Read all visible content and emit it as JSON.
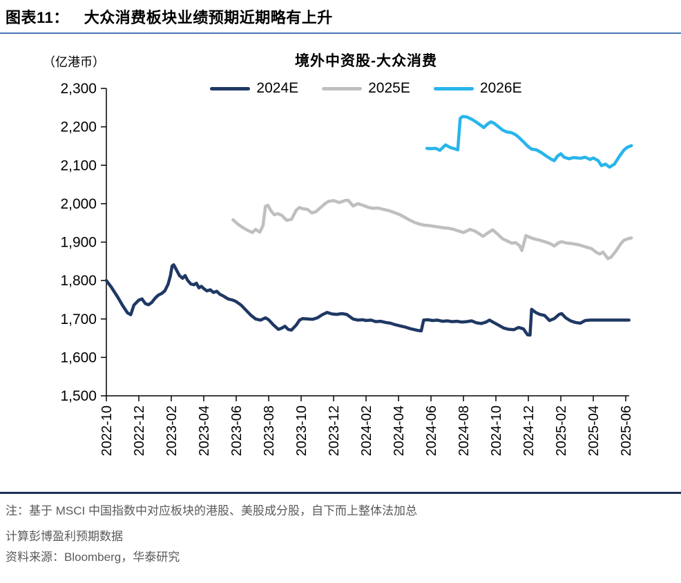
{
  "page": {
    "title_prefix": "图表11：",
    "title": "大众消费板块业绩预期近期略有上升",
    "note_line1": "注：基于 MSCI 中国指数中对应板块的港股、美股成分股，自下而上整体法加总",
    "note_line2": "计算彭博盈利预期数据",
    "source": "资料来源：Bloomberg，华泰研究"
  },
  "colors": {
    "rule_top": "#4a7ab5",
    "rule_bottom": "#1c2f54",
    "note_text": "#5a5a5a",
    "axis": "#000000"
  },
  "chart_data": {
    "type": "line",
    "title": "境外中资股-大众消费",
    "unit_label": "（亿港币）",
    "xlabel": "",
    "ylabel": "",
    "ylim": [
      1500,
      2300
    ],
    "y_ticks": [
      2300,
      2200,
      2100,
      2000,
      1900,
      1800,
      1700,
      1600,
      1500
    ],
    "x_tick_labels": [
      "2022-10",
      "2022-12",
      "2023-02",
      "2023-04",
      "2023-06",
      "2023-08",
      "2023-10",
      "2023-12",
      "2024-02",
      "2024-04",
      "2024-06",
      "2024-08",
      "2024-10",
      "2024-12",
      "2025-02",
      "2025-04",
      "2025-06"
    ],
    "x_months_range": [
      0,
      32
    ],
    "grid": false,
    "legend_position": "top",
    "series": [
      {
        "name": "2024E",
        "color": "#1F3864",
        "points": [
          [
            0,
            1800
          ],
          [
            0.3,
            1783
          ],
          [
            0.7,
            1757
          ],
          [
            1,
            1735
          ],
          [
            1.3,
            1716
          ],
          [
            1.5,
            1711
          ],
          [
            1.7,
            1736
          ],
          [
            2,
            1749
          ],
          [
            2.2,
            1752
          ],
          [
            2.4,
            1740
          ],
          [
            2.6,
            1737
          ],
          [
            2.8,
            1743
          ],
          [
            3,
            1754
          ],
          [
            3.2,
            1762
          ],
          [
            3.4,
            1766
          ],
          [
            3.6,
            1773
          ],
          [
            3.8,
            1790
          ],
          [
            3.95,
            1813
          ],
          [
            4.05,
            1838
          ],
          [
            4.15,
            1841
          ],
          [
            4.3,
            1829
          ],
          [
            4.5,
            1813
          ],
          [
            4.7,
            1806
          ],
          [
            4.85,
            1813
          ],
          [
            5,
            1801
          ],
          [
            5.2,
            1791
          ],
          [
            5.4,
            1789
          ],
          [
            5.55,
            1793
          ],
          [
            5.7,
            1781
          ],
          [
            5.85,
            1785
          ],
          [
            6,
            1779
          ],
          [
            6.2,
            1773
          ],
          [
            6.4,
            1776
          ],
          [
            6.6,
            1769
          ],
          [
            6.8,
            1772
          ],
          [
            7,
            1764
          ],
          [
            7.2,
            1760
          ],
          [
            7.5,
            1752
          ],
          [
            7.8,
            1749
          ],
          [
            8,
            1745
          ],
          [
            8.3,
            1736
          ],
          [
            8.6,
            1723
          ],
          [
            8.9,
            1710
          ],
          [
            9.2,
            1700
          ],
          [
            9.5,
            1697
          ],
          [
            9.8,
            1703
          ],
          [
            10,
            1698
          ],
          [
            10.3,
            1684
          ],
          [
            10.6,
            1673
          ],
          [
            10.8,
            1676
          ],
          [
            11,
            1681
          ],
          [
            11.2,
            1673
          ],
          [
            11.4,
            1671
          ],
          [
            11.7,
            1684
          ],
          [
            11.9,
            1697
          ],
          [
            12.1,
            1701
          ],
          [
            12.4,
            1700
          ],
          [
            12.7,
            1699
          ],
          [
            13,
            1703
          ],
          [
            13.3,
            1711
          ],
          [
            13.6,
            1717
          ],
          [
            13.9,
            1713
          ],
          [
            14.2,
            1712
          ],
          [
            14.5,
            1714
          ],
          [
            14.8,
            1712
          ],
          [
            15,
            1706
          ],
          [
            15.2,
            1700
          ],
          [
            15.5,
            1697
          ],
          [
            15.8,
            1698
          ],
          [
            16,
            1696
          ],
          [
            16.3,
            1697
          ],
          [
            16.6,
            1693
          ],
          [
            16.9,
            1694
          ],
          [
            17.2,
            1691
          ],
          [
            17.5,
            1689
          ],
          [
            17.8,
            1685
          ],
          [
            18.1,
            1682
          ],
          [
            18.4,
            1679
          ],
          [
            18.7,
            1675
          ],
          [
            19,
            1672
          ],
          [
            19.2,
            1670
          ],
          [
            19.4,
            1669
          ],
          [
            19.55,
            1697
          ],
          [
            19.8,
            1698
          ],
          [
            20.1,
            1696
          ],
          [
            20.4,
            1697
          ],
          [
            20.7,
            1694
          ],
          [
            21,
            1695
          ],
          [
            21.3,
            1693
          ],
          [
            21.6,
            1694
          ],
          [
            21.9,
            1692
          ],
          [
            22.2,
            1693
          ],
          [
            22.5,
            1695
          ],
          [
            22.8,
            1690
          ],
          [
            23.1,
            1688
          ],
          [
            23.4,
            1692
          ],
          [
            23.6,
            1697
          ],
          [
            23.9,
            1690
          ],
          [
            24.2,
            1683
          ],
          [
            24.5,
            1676
          ],
          [
            24.8,
            1673
          ],
          [
            25.1,
            1672
          ],
          [
            25.4,
            1678
          ],
          [
            25.7,
            1674
          ],
          [
            25.95,
            1659
          ],
          [
            26.1,
            1658
          ],
          [
            26.2,
            1725
          ],
          [
            26.45,
            1717
          ],
          [
            26.7,
            1712
          ],
          [
            27,
            1709
          ],
          [
            27.3,
            1696
          ],
          [
            27.6,
            1701
          ],
          [
            27.9,
            1712
          ],
          [
            28.05,
            1714
          ],
          [
            28.3,
            1703
          ],
          [
            28.6,
            1695
          ],
          [
            28.9,
            1691
          ],
          [
            29.2,
            1689
          ],
          [
            29.5,
            1696
          ],
          [
            29.8,
            1697
          ],
          [
            30.2,
            1697
          ],
          [
            30.6,
            1697
          ],
          [
            31,
            1697
          ],
          [
            31.4,
            1697
          ],
          [
            31.8,
            1697
          ],
          [
            32.2,
            1697
          ]
        ]
      },
      {
        "name": "2025E",
        "color": "#BFBFBF",
        "points": [
          [
            7.8,
            1958
          ],
          [
            8.1,
            1947
          ],
          [
            8.4,
            1938
          ],
          [
            8.7,
            1931
          ],
          [
            9,
            1925
          ],
          [
            9.2,
            1933
          ],
          [
            9.45,
            1926
          ],
          [
            9.65,
            1943
          ],
          [
            9.8,
            1993
          ],
          [
            9.95,
            1996
          ],
          [
            10.15,
            1981
          ],
          [
            10.35,
            1971
          ],
          [
            10.55,
            1974
          ],
          [
            10.8,
            1970
          ],
          [
            11.1,
            1957
          ],
          [
            11.4,
            1959
          ],
          [
            11.7,
            1983
          ],
          [
            11.9,
            1990
          ],
          [
            12.1,
            1987
          ],
          [
            12.4,
            1985
          ],
          [
            12.65,
            1976
          ],
          [
            12.9,
            1979
          ],
          [
            13.2,
            1990
          ],
          [
            13.5,
            2001
          ],
          [
            13.7,
            2006
          ],
          [
            14,
            2008
          ],
          [
            14.35,
            2003
          ],
          [
            14.7,
            2008
          ],
          [
            14.9,
            2009
          ],
          [
            15.2,
            1994
          ],
          [
            15.5,
            2000
          ],
          [
            15.8,
            1996
          ],
          [
            16.1,
            1991
          ],
          [
            16.4,
            1988
          ],
          [
            16.7,
            1989
          ],
          [
            17,
            1986
          ],
          [
            17.4,
            1982
          ],
          [
            17.8,
            1976
          ],
          [
            18.1,
            1971
          ],
          [
            18.4,
            1964
          ],
          [
            18.7,
            1957
          ],
          [
            19,
            1951
          ],
          [
            19.3,
            1947
          ],
          [
            19.6,
            1944
          ],
          [
            19.9,
            1943
          ],
          [
            20.2,
            1941
          ],
          [
            20.5,
            1939
          ],
          [
            20.8,
            1937
          ],
          [
            21.1,
            1936
          ],
          [
            21.4,
            1933
          ],
          [
            21.7,
            1929
          ],
          [
            22,
            1925
          ],
          [
            22.2,
            1929
          ],
          [
            22.4,
            1933
          ],
          [
            22.7,
            1929
          ],
          [
            23,
            1921
          ],
          [
            23.2,
            1915
          ],
          [
            23.5,
            1924
          ],
          [
            23.8,
            1932
          ],
          [
            24.1,
            1921
          ],
          [
            24.4,
            1909
          ],
          [
            24.7,
            1903
          ],
          [
            25,
            1897
          ],
          [
            25.2,
            1899
          ],
          [
            25.45,
            1891
          ],
          [
            25.6,
            1878
          ],
          [
            25.85,
            1917
          ],
          [
            26.1,
            1912
          ],
          [
            26.4,
            1908
          ],
          [
            26.7,
            1905
          ],
          [
            27,
            1901
          ],
          [
            27.3,
            1897
          ],
          [
            27.6,
            1890
          ],
          [
            27.85,
            1898
          ],
          [
            28.05,
            1901
          ],
          [
            28.3,
            1898
          ],
          [
            28.7,
            1896
          ],
          [
            29.1,
            1893
          ],
          [
            29.5,
            1888
          ],
          [
            29.9,
            1883
          ],
          [
            30.2,
            1873
          ],
          [
            30.4,
            1869
          ],
          [
            30.6,
            1874
          ],
          [
            30.9,
            1857
          ],
          [
            31.1,
            1861
          ],
          [
            31.4,
            1877
          ],
          [
            31.7,
            1896
          ],
          [
            31.9,
            1905
          ],
          [
            32.15,
            1909
          ],
          [
            32.35,
            1911
          ]
        ]
      },
      {
        "name": "2026E",
        "color": "#29B5EA",
        "points": [
          [
            19.75,
            2144
          ],
          [
            20,
            2143
          ],
          [
            20.3,
            2144
          ],
          [
            20.55,
            2139
          ],
          [
            20.9,
            2153
          ],
          [
            21.2,
            2146
          ],
          [
            21.45,
            2143
          ],
          [
            21.65,
            2140
          ],
          [
            21.8,
            2222
          ],
          [
            21.95,
            2227
          ],
          [
            22.2,
            2226
          ],
          [
            22.55,
            2219
          ],
          [
            22.8,
            2212
          ],
          [
            23.1,
            2203
          ],
          [
            23.25,
            2198
          ],
          [
            23.5,
            2208
          ],
          [
            23.7,
            2213
          ],
          [
            23.9,
            2209
          ],
          [
            24.2,
            2199
          ],
          [
            24.4,
            2192
          ],
          [
            24.65,
            2187
          ],
          [
            24.95,
            2185
          ],
          [
            25.2,
            2180
          ],
          [
            25.4,
            2173
          ],
          [
            25.7,
            2161
          ],
          [
            25.95,
            2150
          ],
          [
            26.2,
            2142
          ],
          [
            26.5,
            2140
          ],
          [
            26.8,
            2133
          ],
          [
            27.1,
            2124
          ],
          [
            27.4,
            2116
          ],
          [
            27.6,
            2112
          ],
          [
            27.8,
            2124
          ],
          [
            28,
            2130
          ],
          [
            28.2,
            2121
          ],
          [
            28.5,
            2117
          ],
          [
            28.8,
            2120
          ],
          [
            29.2,
            2118
          ],
          [
            29.5,
            2121
          ],
          [
            29.8,
            2115
          ],
          [
            30,
            2119
          ],
          [
            30.3,
            2112
          ],
          [
            30.5,
            2099
          ],
          [
            30.75,
            2103
          ],
          [
            31,
            2095
          ],
          [
            31.3,
            2103
          ],
          [
            31.6,
            2123
          ],
          [
            31.9,
            2140
          ],
          [
            32.1,
            2147
          ],
          [
            32.35,
            2151
          ]
        ]
      }
    ]
  }
}
